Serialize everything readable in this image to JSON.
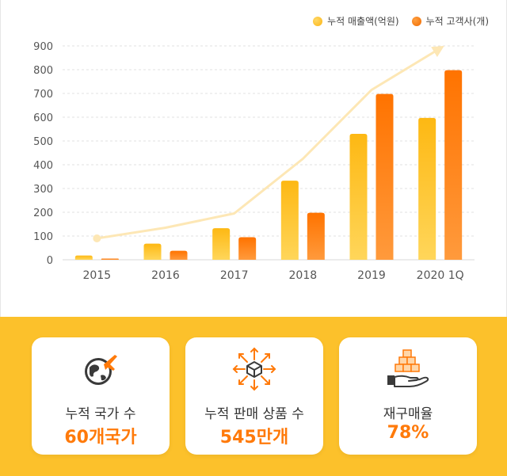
{
  "legend": {
    "sales_label": "누적 매출액(억원)",
    "customers_label": "누적 고객사(개)"
  },
  "colors": {
    "sales": "#fcc12b",
    "customers": "#ff7a0a",
    "trend": "#fde7b5",
    "band": "#fcc12b",
    "value_text": "#ff7a0a"
  },
  "chart_data": {
    "type": "bar",
    "categories": [
      "2015",
      "2016",
      "2017",
      "2018",
      "2019",
      "2020 1Q"
    ],
    "series": [
      {
        "name": "누적 매출액(억원)",
        "values": [
          18,
          68,
          133,
          333,
          530,
          597
        ]
      },
      {
        "name": "누적 고객사(개)",
        "values": [
          5,
          38,
          95,
          198,
          698,
          798
        ]
      }
    ],
    "trend_line": [
      90,
      135,
      195,
      425,
      715,
      890
    ],
    "ylim": [
      0,
      900
    ],
    "yticks": [
      0,
      100,
      200,
      300,
      400,
      500,
      600,
      700,
      800,
      900
    ],
    "grid": true,
    "legend_position": "top-right"
  },
  "stats": [
    {
      "label": "누적 국가 수",
      "value": "60개국가",
      "icon": "globe-plane-icon"
    },
    {
      "label": "누적 판매 상품 수",
      "value": "545만개",
      "icon": "box-arrows-icon"
    },
    {
      "label": "재구매율",
      "value": "78%",
      "icon": "hand-boxes-icon"
    }
  ]
}
